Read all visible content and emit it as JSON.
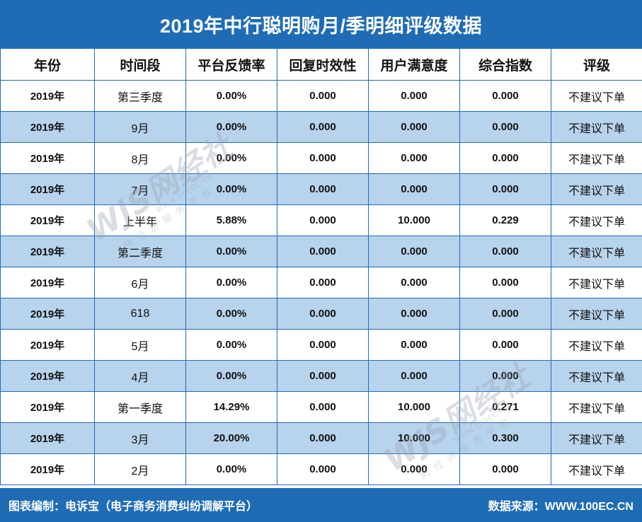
{
  "title": "2019年中行聪明购月/季明细评级数据",
  "columns": [
    "年份",
    "时间段",
    "平台反馈率",
    "回复时效性",
    "用户满意度",
    "综合指数",
    "评级"
  ],
  "rows": [
    [
      "2019年",
      "第三季度",
      "0.00%",
      "0.000",
      "0.000",
      "0.000",
      "不建议下单"
    ],
    [
      "2019年",
      "9月",
      "0.00%",
      "0.000",
      "0.000",
      "0.000",
      "不建议下单"
    ],
    [
      "2019年",
      "8月",
      "0.00%",
      "0.000",
      "0.000",
      "0.000",
      "不建议下单"
    ],
    [
      "2019年",
      "7月",
      "0.00%",
      "0.000",
      "0.000",
      "0.000",
      "不建议下单"
    ],
    [
      "2019年",
      "上半年",
      "5.88%",
      "0.000",
      "10.000",
      "0.229",
      "不建议下单"
    ],
    [
      "2019年",
      "第二季度",
      "0.00%",
      "0.000",
      "0.000",
      "0.000",
      "不建议下单"
    ],
    [
      "2019年",
      "6月",
      "0.00%",
      "0.000",
      "0.000",
      "0.000",
      "不建议下单"
    ],
    [
      "2019年",
      "618",
      "0.00%",
      "0.000",
      "0.000",
      "0.000",
      "不建议下单"
    ],
    [
      "2019年",
      "5月",
      "0.00%",
      "0.000",
      "0.000",
      "0.000",
      "不建议下单"
    ],
    [
      "2019年",
      "4月",
      "0.00%",
      "0.000",
      "0.000",
      "0.000",
      "不建议下单"
    ],
    [
      "2019年",
      "第一季度",
      "14.29%",
      "0.000",
      "10.000",
      "0.271",
      "不建议下单"
    ],
    [
      "2019年",
      "3月",
      "20.00%",
      "0.000",
      "10.000",
      "0.300",
      "不建议下单"
    ],
    [
      "2019年",
      "2月",
      "0.00%",
      "0.000",
      "0.000",
      "0.000",
      "不建议下单"
    ]
  ],
  "footer": {
    "left": "图表编制：电诉宝（电子商务消费纠纷调解平台）",
    "right": "数据来源：WWW.100EC.CN"
  },
  "watermark": {
    "brand": "WJS网经社",
    "url": "WWW.100EC.CN",
    "tagline": "网经济服务平台"
  },
  "colors": {
    "header_blue": "#1f6cb5",
    "stripe_blue": "#b8d3ec",
    "white": "#ffffff"
  }
}
